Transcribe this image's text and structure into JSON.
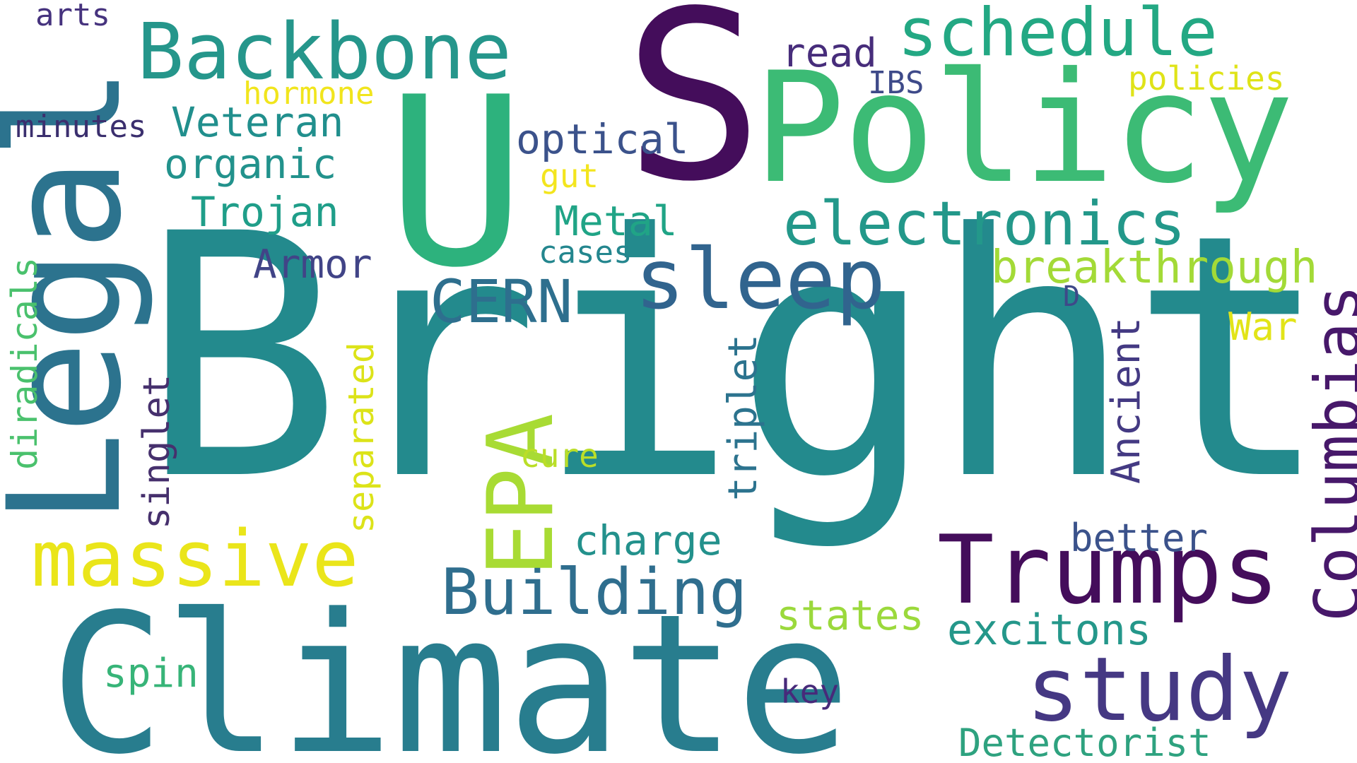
{
  "title": "Word Cloud",
  "colors": {
    "background": "#ffffff"
  },
  "words": [
    {
      "id": "bright",
      "text": "Bright",
      "color": "#238a8d"
    },
    {
      "id": "climate",
      "text": "Climate",
      "color": "#287d8e"
    },
    {
      "id": "policy",
      "text": "Policy",
      "color": "#3cbb75"
    },
    {
      "id": "legal",
      "text": "Legal",
      "color": "#2c738e"
    },
    {
      "id": "u",
      "text": "U",
      "color": "#2db27d"
    },
    {
      "id": "s",
      "text": "S",
      "color": "#440d5b"
    },
    {
      "id": "backbone",
      "text": "Backbone",
      "color": "#25968b"
    },
    {
      "id": "schedule",
      "text": "schedule",
      "color": "#23a883"
    },
    {
      "id": "sleep",
      "text": "sleep",
      "color": "#31648e"
    },
    {
      "id": "electronics",
      "text": "electronics",
      "color": "#23988a"
    },
    {
      "id": "massive",
      "text": "massive",
      "color": "#eae51a"
    },
    {
      "id": "trumps",
      "text": "Trumps",
      "color": "#440d5b"
    },
    {
      "id": "study",
      "text": "study",
      "color": "#453883"
    },
    {
      "id": "columbias",
      "text": "Columbias",
      "color": "#47186a"
    },
    {
      "id": "building",
      "text": "Building",
      "color": "#2f6e8e"
    },
    {
      "id": "epa",
      "text": "EPA",
      "color": "#a8db34"
    },
    {
      "id": "cern",
      "text": "CERN",
      "color": "#2e6f8e"
    },
    {
      "id": "breakthrough",
      "text": "breakthrough",
      "color": "#a3da37"
    },
    {
      "id": "detectorist",
      "text": "Detectorist",
      "color": "#2ea27f"
    },
    {
      "id": "excitons",
      "text": "excitons",
      "color": "#24978a"
    },
    {
      "id": "veteran",
      "text": "Veteran",
      "color": "#218f8d"
    },
    {
      "id": "organic",
      "text": "organic",
      "color": "#22928c"
    },
    {
      "id": "trojan",
      "text": "Trojan",
      "color": "#1f9e89"
    },
    {
      "id": "optical",
      "text": "optical",
      "color": "#3b528b"
    },
    {
      "id": "metal",
      "text": "Metal",
      "color": "#20a486"
    },
    {
      "id": "armor",
      "text": "Armor",
      "color": "#414487"
    },
    {
      "id": "charge",
      "text": "charge",
      "color": "#23918c"
    },
    {
      "id": "states",
      "text": "states",
      "color": "#9bd93c"
    },
    {
      "id": "read",
      "text": "read",
      "color": "#472d7b"
    },
    {
      "id": "spin",
      "text": "spin",
      "color": "#37b478"
    },
    {
      "id": "better",
      "text": "better",
      "color": "#3b528b"
    },
    {
      "id": "war",
      "text": "War",
      "color": "#e2e418"
    },
    {
      "id": "ancient",
      "text": "Ancient",
      "color": "#443a83"
    },
    {
      "id": "separated",
      "text": "separated",
      "color": "#dce319"
    },
    {
      "id": "triplet",
      "text": "triplet",
      "color": "#2c738e"
    },
    {
      "id": "singlet",
      "text": "singlet",
      "color": "#46306d"
    },
    {
      "id": "diradicals",
      "text": "diradicals",
      "color": "#4ac16d"
    },
    {
      "id": "hormone",
      "text": "hormone",
      "color": "#f1e51d"
    },
    {
      "id": "minutes",
      "text": "minutes",
      "color": "#3b2f6e"
    },
    {
      "id": "arts",
      "text": "arts",
      "color": "#46337e"
    },
    {
      "id": "policies",
      "text": "policies",
      "color": "#dfe318"
    },
    {
      "id": "ibs",
      "text": "IBS",
      "color": "#3e4a89"
    },
    {
      "id": "gut",
      "text": "gut",
      "color": "#f3e51e"
    },
    {
      "id": "cases",
      "text": "cases",
      "color": "#24868e"
    },
    {
      "id": "d",
      "text": "D",
      "color": "#3e4989"
    },
    {
      "id": "cure",
      "text": "cure",
      "color": "#bade28"
    },
    {
      "id": "key",
      "text": "key",
      "color": "#472a7a"
    }
  ]
}
